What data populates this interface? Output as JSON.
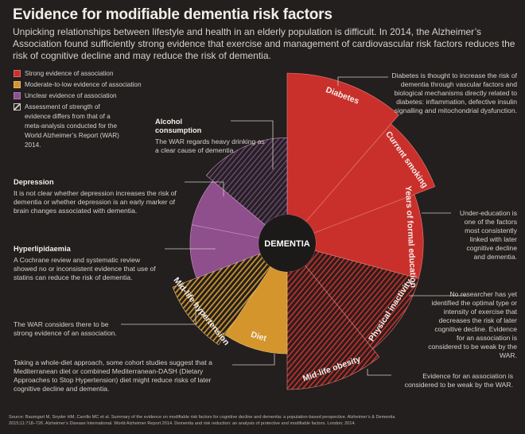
{
  "header": {
    "title": "Evidence for modifiable dementia risk factors",
    "intro": "Unpicking relationships between lifestyle and health in an elderly population is difficult. In 2014, the Alzheimer’s Association found sufficiently strong evidence that exercise and management of cardiovascular risk factors reduces the risk of cognitive decline and may reduce the risk of dementia."
  },
  "legend": {
    "items": [
      {
        "key": "strong",
        "label": "Strong evidence of association",
        "color": "#c9302c"
      },
      {
        "key": "moderate",
        "label": "Moderate-to-low evidence of association",
        "color": "#d4952c"
      },
      {
        "key": "unclear",
        "label": "Unclear evidence of association",
        "color": "#8e4f8c"
      },
      {
        "key": "hatched",
        "label": "Assessment of strength of evidence differs from that of a meta-analysis conducted for the World Alzheimer’s Report (WAR) 2014.",
        "color": "#231f1e"
      }
    ]
  },
  "chart_data": {
    "type": "polar-area",
    "center_label": "DEMENTIA",
    "segments": [
      {
        "name": "Diabetes",
        "evidence": "strong",
        "hatched": false,
        "relative_size": 1.0
      },
      {
        "name": "Current smoking",
        "evidence": "strong",
        "hatched": false,
        "relative_size": 0.93
      },
      {
        "name": "Years of formal education",
        "evidence": "strong",
        "hatched": false,
        "relative_size": 0.8
      },
      {
        "name": "Physical inactivity",
        "evidence": "strong",
        "hatched": true,
        "relative_size": 0.8
      },
      {
        "name": "Mid-life obesity",
        "evidence": "strong",
        "hatched": true,
        "relative_size": 0.86
      },
      {
        "name": "Diet",
        "evidence": "moderate",
        "hatched": false,
        "relative_size": 0.65
      },
      {
        "name": "Mid-life hypertension",
        "evidence": "moderate",
        "hatched": true,
        "relative_size": 0.72
      },
      {
        "name": "Hyperlipidaemia",
        "evidence": "unclear",
        "hatched": false,
        "relative_size": 0.57
      },
      {
        "name": "Depression",
        "evidence": "unclear",
        "hatched": false,
        "relative_size": 0.57
      },
      {
        "name": "Alcohol consumption",
        "evidence": "unclear",
        "hatched": true,
        "relative_size": 0.62
      }
    ]
  },
  "annotations": {
    "alcohol": {
      "title": "Alcohol consumption",
      "text": "The WAR regards heavy drinking as a clear cause of dementia."
    },
    "depression": {
      "title": "Depression",
      "text": "It is not clear whether depression increases the risk of dementia or whether depression is an early marker of brain changes associated with dementia."
    },
    "hyperlipidaemia": {
      "title": "Hyperlipidaemia",
      "text": "A Cochrane review and systematic review showed no or inconsistent evidence that use of statins can reduce the risk of dementia."
    },
    "hypertension": {
      "text": "The WAR considers there to be strong evidence of an association."
    },
    "diet": {
      "text": "Taking a whole-diet approach, some cohort studies suggest that a Mediterranean diet or combined Mediterranean-DASH (Dietary Approaches to Stop Hypertension) diet might reduce risks of later cognitive decline and dementia."
    },
    "diabetes": {
      "text": "Diabetes is thought to increase the risk of dementia through vascular factors and biological mechanisms directly related to diabetes: inflammation, defective insulin signalling and mitochondrial dysfunction."
    },
    "education": {
      "text": "Under-education is one of the factors most consistently linked with later cognitive decline and dementia."
    },
    "inactivity": {
      "text": "No researcher has yet identified the optimal type or intensity of exercise that decreases the risk of later cognitive decline. Evidence for an association is considered to be weak by the WAR."
    },
    "obesity": {
      "text": "Evidence for an association is considered to be weak by the WAR."
    }
  },
  "source": {
    "line1": "Source: Baumgart M, Snyder HM, Carrillo MC et al. Summary of the evidence on modifiable risk factors for cognitive decline and dementia: a population-based perspective. Alzheimer’s & Dementia",
    "line2": "2015;11:718–726. Alzheimer’s Disease International. World Alzheimer Report 2014. Dementia and risk reduction: an analysis of protective and modifiable factors. London; 2014."
  }
}
